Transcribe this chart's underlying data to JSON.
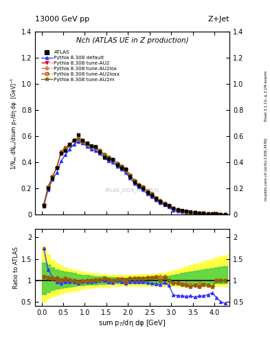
{
  "title_top": "13000 GeV pp",
  "title_top_right": "Z+Jet",
  "title_main": "Nch (ATLAS UE in Z production)",
  "ylabel_main": "1/N$_{ev}$ dN$_{ev}$/dsum p$_{T}$/dη dφ  [GeV]$^{-1}$",
  "ylabel_ratio": "Ratio to ATLAS",
  "xlabel": "sum p$_{T}$/dη dφ [GeV]",
  "watermark": "ATLAS_2019_I1736531",
  "right_label1": "Rivet 3.1.10, ≥ 3.1M events",
  "right_label2": "mcplots.cern.ch [arXiv:1306.3436]",
  "ylim_main": [
    0,
    1.4
  ],
  "ylim_ratio": [
    0.4,
    2.2
  ],
  "yticks_main": [
    0.0,
    0.2,
    0.4,
    0.6,
    0.8,
    1.0,
    1.2,
    1.4
  ],
  "yticks_ratio": [
    0.5,
    1.0,
    1.5,
    2.0
  ],
  "xlim": [
    -0.15,
    4.35
  ],
  "x_data": [
    0.05,
    0.15,
    0.25,
    0.35,
    0.45,
    0.55,
    0.65,
    0.75,
    0.85,
    0.95,
    1.05,
    1.15,
    1.25,
    1.35,
    1.45,
    1.55,
    1.65,
    1.75,
    1.85,
    1.95,
    2.05,
    2.15,
    2.25,
    2.35,
    2.45,
    2.55,
    2.65,
    2.75,
    2.85,
    2.95,
    3.05,
    3.15,
    3.25,
    3.35,
    3.45,
    3.55,
    3.65,
    3.75,
    3.85,
    3.95,
    4.05,
    4.15,
    4.25
  ],
  "atlas_y": [
    0.07,
    0.2,
    0.28,
    0.36,
    0.47,
    0.49,
    0.54,
    0.57,
    0.61,
    0.57,
    0.55,
    0.53,
    0.52,
    0.48,
    0.44,
    0.43,
    0.42,
    0.38,
    0.36,
    0.35,
    0.29,
    0.25,
    0.22,
    0.2,
    0.17,
    0.15,
    0.12,
    0.1,
    0.08,
    0.07,
    0.05,
    0.04,
    0.033,
    0.027,
    0.022,
    0.018,
    0.014,
    0.011,
    0.009,
    0.007,
    0.005,
    0.004,
    0.003
  ],
  "pythia_default_y": [
    0.065,
    0.19,
    0.27,
    0.32,
    0.41,
    0.46,
    0.5,
    0.54,
    0.56,
    0.55,
    0.52,
    0.5,
    0.49,
    0.47,
    0.44,
    0.41,
    0.4,
    0.37,
    0.35,
    0.32,
    0.28,
    0.24,
    0.21,
    0.19,
    0.16,
    0.14,
    0.11,
    0.09,
    0.075,
    0.06,
    0.033,
    0.026,
    0.021,
    0.017,
    0.014,
    0.011,
    0.009,
    0.007,
    0.006,
    0.005,
    0.003,
    0.002,
    0.0015
  ],
  "au2_y": [
    0.075,
    0.21,
    0.29,
    0.36,
    0.48,
    0.51,
    0.54,
    0.57,
    0.58,
    0.56,
    0.54,
    0.52,
    0.51,
    0.49,
    0.46,
    0.44,
    0.42,
    0.39,
    0.37,
    0.35,
    0.3,
    0.26,
    0.23,
    0.21,
    0.18,
    0.16,
    0.13,
    0.1,
    0.085,
    0.07,
    0.047,
    0.037,
    0.03,
    0.024,
    0.019,
    0.016,
    0.012,
    0.01,
    0.008,
    0.006,
    0.005,
    0.004,
    0.003
  ],
  "au2lox_y": [
    0.075,
    0.21,
    0.29,
    0.36,
    0.48,
    0.51,
    0.54,
    0.57,
    0.58,
    0.57,
    0.54,
    0.52,
    0.51,
    0.49,
    0.46,
    0.44,
    0.42,
    0.39,
    0.37,
    0.35,
    0.3,
    0.26,
    0.23,
    0.21,
    0.18,
    0.16,
    0.13,
    0.11,
    0.088,
    0.07,
    0.047,
    0.038,
    0.03,
    0.025,
    0.02,
    0.016,
    0.013,
    0.01,
    0.008,
    0.006,
    0.005,
    0.004,
    0.003
  ],
  "au2loxx_y": [
    0.075,
    0.21,
    0.29,
    0.36,
    0.48,
    0.51,
    0.54,
    0.57,
    0.58,
    0.56,
    0.54,
    0.52,
    0.51,
    0.49,
    0.46,
    0.44,
    0.42,
    0.39,
    0.37,
    0.34,
    0.3,
    0.26,
    0.23,
    0.21,
    0.18,
    0.16,
    0.13,
    0.1,
    0.085,
    0.07,
    0.047,
    0.037,
    0.03,
    0.024,
    0.019,
    0.016,
    0.012,
    0.01,
    0.008,
    0.006,
    0.005,
    0.004,
    0.003
  ],
  "au2m_y": [
    0.076,
    0.21,
    0.29,
    0.36,
    0.47,
    0.5,
    0.53,
    0.57,
    0.58,
    0.56,
    0.54,
    0.52,
    0.51,
    0.49,
    0.46,
    0.44,
    0.42,
    0.39,
    0.37,
    0.35,
    0.3,
    0.26,
    0.23,
    0.21,
    0.18,
    0.16,
    0.13,
    0.1,
    0.085,
    0.07,
    0.047,
    0.037,
    0.03,
    0.024,
    0.019,
    0.016,
    0.012,
    0.01,
    0.008,
    0.006,
    0.005,
    0.004,
    0.003
  ],
  "ratio_default": [
    1.75,
    1.25,
    1.08,
    0.97,
    0.93,
    0.97,
    0.96,
    0.96,
    0.93,
    0.96,
    0.96,
    0.96,
    0.98,
    1.0,
    1.0,
    0.96,
    0.95,
    1.0,
    0.97,
    0.94,
    0.97,
    0.96,
    0.96,
    0.97,
    0.95,
    0.93,
    0.92,
    0.9,
    0.95,
    0.88,
    0.66,
    0.65,
    0.64,
    0.63,
    0.64,
    0.61,
    0.64,
    0.64,
    0.67,
    0.71,
    0.6,
    0.5,
    0.47
  ],
  "ratio_au2": [
    1.08,
    1.07,
    1.04,
    1.02,
    1.02,
    1.04,
    1.01,
    1.0,
    0.96,
    0.98,
    1.0,
    1.0,
    1.02,
    1.02,
    1.05,
    1.02,
    1.0,
    1.03,
    1.03,
    1.01,
    1.04,
    1.04,
    1.05,
    1.05,
    1.06,
    1.07,
    1.08,
    1.0,
    1.06,
    1.0,
    0.94,
    0.93,
    0.91,
    0.89,
    0.86,
    0.89,
    0.86,
    0.91,
    0.89,
    0.86,
    1.0,
    1.0,
    1.0
  ],
  "ratio_au2lox": [
    1.08,
    1.07,
    1.04,
    1.02,
    1.02,
    1.04,
    1.01,
    1.0,
    0.96,
    1.0,
    1.0,
    1.0,
    1.02,
    1.02,
    1.05,
    1.02,
    1.0,
    1.03,
    1.03,
    1.01,
    1.04,
    1.04,
    1.05,
    1.05,
    1.06,
    1.07,
    1.08,
    1.1,
    1.1,
    1.0,
    0.94,
    0.95,
    0.91,
    0.93,
    0.91,
    0.89,
    0.93,
    0.91,
    0.89,
    0.86,
    1.0,
    1.0,
    1.0
  ],
  "ratio_au2loxx": [
    1.08,
    1.07,
    1.04,
    1.02,
    1.02,
    1.04,
    1.01,
    1.0,
    0.96,
    0.98,
    1.0,
    1.0,
    1.02,
    1.02,
    1.05,
    1.02,
    1.0,
    1.03,
    1.03,
    0.97,
    1.04,
    1.04,
    1.05,
    1.05,
    1.06,
    1.07,
    1.08,
    1.0,
    1.06,
    1.0,
    0.94,
    0.93,
    0.91,
    0.89,
    0.86,
    0.89,
    0.86,
    0.91,
    0.89,
    0.86,
    1.0,
    1.0,
    1.0
  ],
  "ratio_au2m": [
    1.09,
    1.07,
    1.04,
    1.06,
    1.0,
    1.02,
    1.01,
    1.0,
    0.96,
    0.98,
    1.0,
    1.0,
    1.02,
    1.02,
    1.05,
    1.02,
    1.0,
    1.03,
    1.03,
    1.01,
    1.04,
    1.04,
    1.05,
    1.05,
    1.06,
    1.07,
    1.08,
    1.0,
    1.06,
    1.0,
    0.94,
    0.93,
    0.91,
    0.89,
    0.86,
    0.89,
    0.86,
    0.91,
    0.89,
    0.86,
    1.0,
    1.0,
    1.0
  ],
  "band_x": [
    0.0,
    0.1,
    0.2,
    0.3,
    0.4,
    0.5,
    0.6,
    0.7,
    0.8,
    0.9,
    1.0,
    1.1,
    1.2,
    1.3,
    1.4,
    1.5,
    1.6,
    1.7,
    1.8,
    1.9,
    2.0,
    2.1,
    2.2,
    2.3,
    2.4,
    2.5,
    2.6,
    2.7,
    2.8,
    2.9,
    3.0,
    3.1,
    3.2,
    3.3,
    3.4,
    3.5,
    3.6,
    3.7,
    3.8,
    3.9,
    4.0,
    4.1,
    4.2,
    4.3
  ],
  "band_yellow_lo": [
    0.5,
    0.58,
    0.63,
    0.67,
    0.7,
    0.72,
    0.74,
    0.76,
    0.78,
    0.8,
    0.82,
    0.83,
    0.84,
    0.85,
    0.86,
    0.86,
    0.87,
    0.87,
    0.87,
    0.87,
    0.87,
    0.87,
    0.87,
    0.87,
    0.87,
    0.87,
    0.87,
    0.87,
    0.87,
    0.87,
    0.87,
    0.87,
    0.87,
    0.87,
    0.87,
    0.87,
    0.87,
    0.87,
    0.87,
    0.87,
    0.87,
    0.87,
    0.87,
    0.87
  ],
  "band_yellow_hi": [
    1.8,
    1.6,
    1.47,
    1.4,
    1.34,
    1.3,
    1.27,
    1.24,
    1.22,
    1.2,
    1.18,
    1.17,
    1.16,
    1.15,
    1.14,
    1.13,
    1.13,
    1.13,
    1.13,
    1.13,
    1.13,
    1.13,
    1.14,
    1.14,
    1.15,
    1.15,
    1.16,
    1.17,
    1.18,
    1.2,
    1.22,
    1.26,
    1.29,
    1.32,
    1.35,
    1.38,
    1.4,
    1.43,
    1.46,
    1.49,
    1.52,
    1.55,
    1.58,
    1.6
  ],
  "band_green_lo": [
    0.68,
    0.73,
    0.77,
    0.8,
    0.82,
    0.84,
    0.85,
    0.87,
    0.88,
    0.89,
    0.9,
    0.91,
    0.91,
    0.92,
    0.92,
    0.92,
    0.93,
    0.93,
    0.93,
    0.93,
    0.93,
    0.93,
    0.93,
    0.93,
    0.93,
    0.93,
    0.93,
    0.93,
    0.93,
    0.93,
    0.93,
    0.93,
    0.93,
    0.93,
    0.93,
    0.93,
    0.93,
    0.93,
    0.93,
    0.93,
    0.93,
    0.93,
    0.93,
    0.93
  ],
  "band_green_hi": [
    1.42,
    1.37,
    1.3,
    1.26,
    1.23,
    1.21,
    1.19,
    1.17,
    1.15,
    1.13,
    1.12,
    1.11,
    1.1,
    1.09,
    1.09,
    1.08,
    1.08,
    1.07,
    1.07,
    1.07,
    1.07,
    1.07,
    1.08,
    1.08,
    1.08,
    1.08,
    1.09,
    1.1,
    1.1,
    1.11,
    1.13,
    1.15,
    1.17,
    1.19,
    1.21,
    1.23,
    1.24,
    1.26,
    1.27,
    1.29,
    1.3,
    1.32,
    1.33,
    1.34
  ],
  "color_atlas": "#000000",
  "color_default": "#3333ff",
  "color_au2": "#cc0033",
  "color_au2lox": "#cc6633",
  "color_au2loxx": "#cc4400",
  "color_au2m": "#886600",
  "color_band_yellow": "#ffff44",
  "color_band_green": "#44cc44"
}
